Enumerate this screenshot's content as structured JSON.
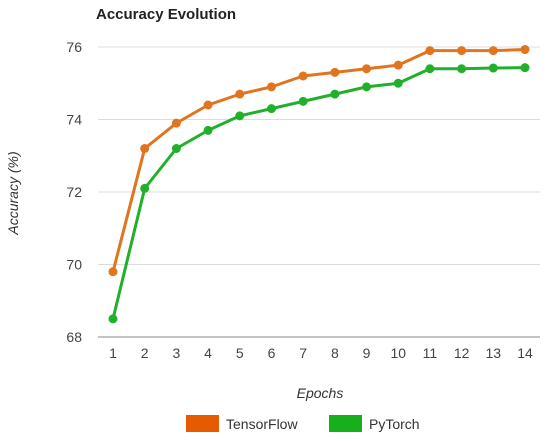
{
  "chart_data": {
    "type": "line",
    "title": "Accuracy Evolution",
    "xlabel": "Epochs",
    "ylabel": "Accuracy (%)",
    "x": [
      1,
      2,
      3,
      4,
      5,
      6,
      7,
      8,
      9,
      10,
      11,
      12,
      13,
      14
    ],
    "ylim": [
      68,
      76
    ],
    "yticks": [
      68,
      70,
      72,
      74,
      76
    ],
    "grid": true,
    "legend_position": "bottom",
    "series": [
      {
        "name": "TensorFlow",
        "color": "#e0741f",
        "legend_color": "#e65a00",
        "values": [
          69.8,
          73.2,
          73.9,
          74.4,
          74.7,
          74.9,
          75.2,
          75.3,
          75.4,
          75.5,
          75.9,
          75.9,
          75.9,
          75.93
        ]
      },
      {
        "name": "PyTorch",
        "color": "#21b02a",
        "legend_color": "#17b01c",
        "values": [
          68.5,
          72.1,
          73.2,
          73.7,
          74.1,
          74.3,
          74.5,
          74.7,
          74.9,
          75.0,
          75.4,
          75.4,
          75.42,
          75.43
        ]
      }
    ]
  }
}
